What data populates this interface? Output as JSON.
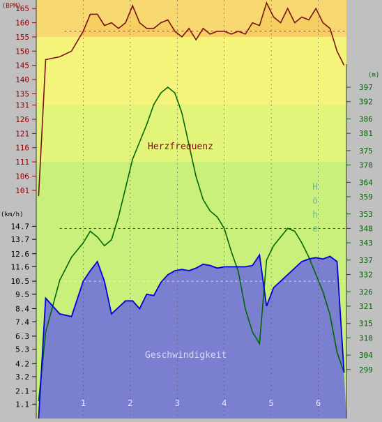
{
  "chart_data": {
    "type": "line",
    "x": [
      0.05,
      0.2,
      0.5,
      0.75,
      1.0,
      1.15,
      1.3,
      1.45,
      1.6,
      1.75,
      1.9,
      2.05,
      2.2,
      2.35,
      2.5,
      2.65,
      2.8,
      2.95,
      3.1,
      3.25,
      3.4,
      3.55,
      3.7,
      3.85,
      4.0,
      4.15,
      4.3,
      4.45,
      4.6,
      4.75,
      4.9,
      5.05,
      5.2,
      5.35,
      5.5,
      5.65,
      5.8,
      5.95,
      6.1,
      6.25,
      6.4,
      6.55
    ],
    "heart_rate": {
      "label": "Herzfrequenz",
      "unit": "(BPM)",
      "ticks": [
        101,
        106,
        111,
        116,
        121,
        126,
        131,
        135,
        140,
        145,
        150,
        155,
        160,
        165
      ],
      "ylim": [
        98,
        168
      ],
      "dashed_avg": 157,
      "values": [
        99,
        147,
        148,
        150,
        157,
        163,
        163,
        159,
        160,
        158,
        160,
        166,
        160,
        158,
        158,
        160,
        161,
        157,
        155,
        158,
        154,
        158,
        156,
        157,
        157,
        156,
        157,
        156,
        160,
        159,
        167,
        162,
        160,
        165,
        160,
        162,
        161,
        165,
        160,
        158,
        150,
        145
      ]
    },
    "speed": {
      "label": "Geschwindigkeit",
      "unit": "(km/h)",
      "ticks": [
        1.1,
        2.1,
        3.2,
        4.2,
        5.3,
        6.3,
        7.4,
        8.4,
        9.5,
        10.5,
        11.6,
        12.6,
        13.7,
        14.7
      ],
      "ylim": [
        0,
        16
      ],
      "dashed_avg": 10.5,
      "values": [
        0,
        9.2,
        8.0,
        7.8,
        10.5,
        11.3,
        12.0,
        10.5,
        8.0,
        8.5,
        9.0,
        9.0,
        8.4,
        9.5,
        9.4,
        10.4,
        11.0,
        11.3,
        11.4,
        11.3,
        11.5,
        11.8,
        11.7,
        11.5,
        11.6,
        11.6,
        11.6,
        11.6,
        11.7,
        12.5,
        8.6,
        10.0,
        10.5,
        11.0,
        11.5,
        12.0,
        12.2,
        12.3,
        12.2,
        12.4,
        12.0,
        3.5
      ]
    },
    "altitude": {
      "label": "Höhe",
      "unit": "(m)",
      "ticks": [
        299,
        304,
        310,
        315,
        321,
        326,
        332,
        337,
        343,
        348,
        353,
        359,
        364,
        370,
        375,
        381,
        386,
        392,
        397
      ],
      "ylim": [
        282,
        405
      ],
      "dashed_avg": 348,
      "values": [
        288,
        312,
        330,
        338,
        343,
        347,
        345,
        342,
        344,
        352,
        362,
        372,
        378,
        384,
        391,
        395,
        397,
        395,
        388,
        377,
        366,
        358,
        354,
        352,
        348,
        340,
        333,
        320,
        312,
        308,
        337,
        342,
        345,
        348,
        347,
        343,
        338,
        332,
        326,
        318,
        305,
        298
      ]
    },
    "x_ticks": [
      1,
      2,
      3,
      4,
      5,
      6
    ],
    "xlim": [
      0,
      6.6
    ],
    "zones": [
      {
        "from": 98,
        "to": 111,
        "color": "#c8f07a"
      },
      {
        "from": 111,
        "to": 131,
        "color": "#e2f57a"
      },
      {
        "from": 131,
        "to": 155,
        "color": "#f4f47a"
      },
      {
        "from": 155,
        "to": 168,
        "color": "#f8d870"
      }
    ],
    "colors": {
      "heart_rate": "#7a1010",
      "heart_rate_fill": "#f5cf62",
      "speed": "#0000e0",
      "speed_fill": "#7b7fcf",
      "altitude": "#006600",
      "axis_bg": "#c0c0c0",
      "hr_tick_text": "#990000",
      "speed_tick_text": "#000000",
      "alt_tick_text": "#006600",
      "label_altitude": "#70b8a0",
      "label_speed": "#d8d8f8"
    },
    "grid": true
  }
}
